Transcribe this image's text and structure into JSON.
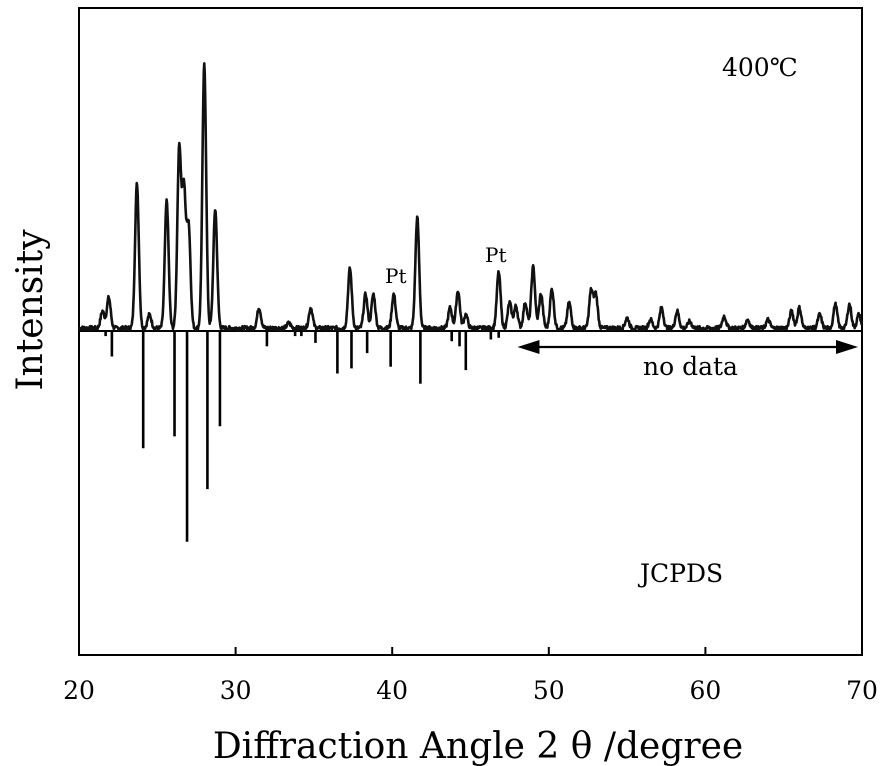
{
  "chart_data": {
    "type": "line",
    "title": "",
    "xlabel": "Diffraction Angle 2 θ /degree",
    "ylabel": "Intensity",
    "xlim": [
      20,
      70
    ],
    "x_ticks": [
      20,
      30,
      40,
      50,
      60,
      70
    ],
    "x_tick_labels": [
      "20",
      "30",
      "40",
      "50",
      "60",
      "70"
    ],
    "y_ticks": [],
    "grid": false,
    "legend": "none",
    "baseline": 0,
    "series": [
      {
        "kind": "measured-pattern",
        "peaks": [
          {
            "x": 21.5,
            "y": 10
          },
          {
            "x": 21.9,
            "y": 18
          },
          {
            "x": 23.7,
            "y": 85
          },
          {
            "x": 24.5,
            "y": 8
          },
          {
            "x": 25.6,
            "y": 75
          },
          {
            "x": 26.4,
            "y": 105
          },
          {
            "x": 26.7,
            "y": 80
          },
          {
            "x": 27.0,
            "y": 60
          },
          {
            "x": 28.0,
            "y": 155
          },
          {
            "x": 28.7,
            "y": 70
          },
          {
            "x": 31.5,
            "y": 12
          },
          {
            "x": 33.4,
            "y": 3
          },
          {
            "x": 34.8,
            "y": 12
          },
          {
            "x": 37.3,
            "y": 35
          },
          {
            "x": 38.3,
            "y": 20
          },
          {
            "x": 38.8,
            "y": 20
          },
          {
            "x": 40.1,
            "y": 20
          },
          {
            "x": 41.6,
            "y": 65
          },
          {
            "x": 43.7,
            "y": 12
          },
          {
            "x": 44.2,
            "y": 22
          },
          {
            "x": 44.7,
            "y": 8
          },
          {
            "x": 46.8,
            "y": 33
          },
          {
            "x": 47.5,
            "y": 15
          },
          {
            "x": 47.9,
            "y": 13
          },
          {
            "x": 48.5,
            "y": 15
          },
          {
            "x": 49.0,
            "y": 36
          },
          {
            "x": 49.5,
            "y": 20
          },
          {
            "x": 50.2,
            "y": 23
          },
          {
            "x": 51.3,
            "y": 15
          },
          {
            "x": 52.7,
            "y": 22
          },
          {
            "x": 53.0,
            "y": 20
          },
          {
            "x": 55.0,
            "y": 6
          },
          {
            "x": 56.5,
            "y": 5
          },
          {
            "x": 57.2,
            "y": 12
          },
          {
            "x": 58.2,
            "y": 10
          },
          {
            "x": 59.0,
            "y": 4
          },
          {
            "x": 61.2,
            "y": 7
          },
          {
            "x": 62.7,
            "y": 5
          },
          {
            "x": 64.0,
            "y": 5
          },
          {
            "x": 65.5,
            "y": 10
          },
          {
            "x": 66.0,
            "y": 12
          },
          {
            "x": 67.3,
            "y": 8
          },
          {
            "x": 68.3,
            "y": 14
          },
          {
            "x": 69.2,
            "y": 14
          },
          {
            "x": 69.8,
            "y": 8
          }
        ]
      },
      {
        "kind": "reference-sticks",
        "name": "JCPDS",
        "sticks": [
          {
            "x": 21.7,
            "y": -3
          },
          {
            "x": 22.1,
            "y": -15
          },
          {
            "x": 24.1,
            "y": -69
          },
          {
            "x": 26.1,
            "y": -62
          },
          {
            "x": 26.9,
            "y": -124
          },
          {
            "x": 28.2,
            "y": -93
          },
          {
            "x": 29.0,
            "y": -56
          },
          {
            "x": 32.0,
            "y": -9
          },
          {
            "x": 33.8,
            "y": -3
          },
          {
            "x": 34.2,
            "y": -3
          },
          {
            "x": 35.1,
            "y": -7
          },
          {
            "x": 36.5,
            "y": -25
          },
          {
            "x": 37.4,
            "y": -22
          },
          {
            "x": 38.4,
            "y": -13
          },
          {
            "x": 39.9,
            "y": -21
          },
          {
            "x": 41.8,
            "y": -31
          },
          {
            "x": 43.8,
            "y": -6
          },
          {
            "x": 44.3,
            "y": -9
          },
          {
            "x": 44.7,
            "y": -23
          },
          {
            "x": 46.3,
            "y": -5
          },
          {
            "x": 46.8,
            "y": -4
          }
        ]
      }
    ],
    "annotations": {
      "temperature": "400℃",
      "pt_left": "Pt",
      "pt_right": "Pt",
      "no_data": "no data",
      "reference": "JCPDS",
      "no_data_range": [
        48,
        70
      ]
    }
  }
}
